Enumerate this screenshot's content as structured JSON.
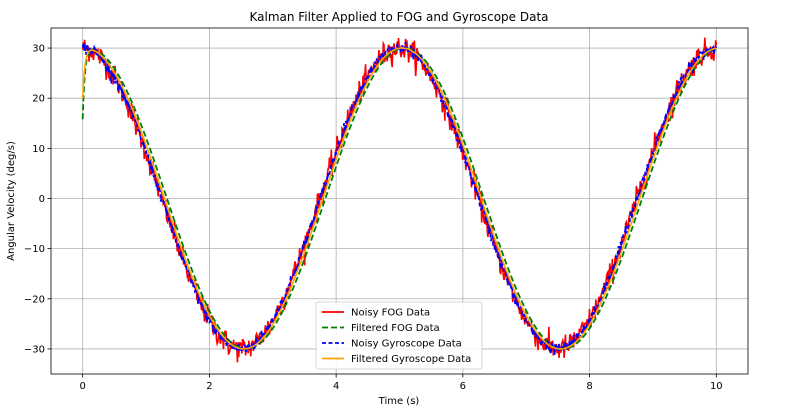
{
  "chart_data": {
    "type": "line",
    "title": "Kalman Filter Applied to FOG and Gyroscope Data",
    "xlabel": "Time (s)",
    "ylabel": "Angular Velocity (deg/s)",
    "xlim": [
      -0.5,
      10.5
    ],
    "ylim": [
      -35,
      34
    ],
    "xticks": [
      0,
      2,
      4,
      6,
      8,
      10
    ],
    "yticks": [
      -30,
      -20,
      -10,
      0,
      10,
      20,
      30
    ],
    "ytick_labels": [
      "−30",
      "−20",
      "−10",
      "0",
      "10",
      "20",
      "30"
    ],
    "grid": true,
    "legend_position": "lower center",
    "signal": {
      "amplitude": 30,
      "period_s": 5,
      "phase": "cosine",
      "x_range": [
        0,
        10
      ]
    },
    "series": [
      {
        "name": "Noisy FOG Data",
        "color": "#ff0000",
        "style": "solid",
        "noise_amplitude": 1.2
      },
      {
        "name": "Filtered FOG Data",
        "color": "#008000",
        "style": "dashed",
        "lag_s": 0.08,
        "start_value": 15.8
      },
      {
        "name": "Noisy Gyroscope Data",
        "color": "#0000ff",
        "style": "dashed",
        "noise_amplitude": 0.6
      },
      {
        "name": "Filtered Gyroscope Data",
        "color": "#ffa500",
        "style": "solid",
        "lag_s": 0.04,
        "start_value": 20
      }
    ]
  }
}
